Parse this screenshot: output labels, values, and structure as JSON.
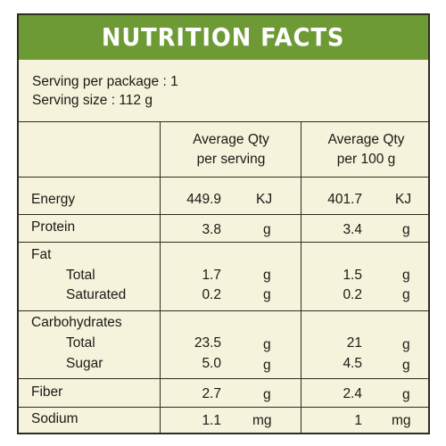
{
  "title": "NUTRITION FACTS",
  "serving": {
    "per_package": "Serving per package : 1",
    "size": "Serving size : 112 g"
  },
  "columns": {
    "per_serving_line1": "Average Qty",
    "per_serving_line2": "per serving",
    "per_100g_line1": "Average Qty",
    "per_100g_line2": "per 100 g"
  },
  "rows": {
    "energy": {
      "label": "Energy",
      "serving": "449.9",
      "serving_unit": "KJ",
      "per100": "401.7",
      "per100_unit": "KJ"
    },
    "protein": {
      "label": "Protein",
      "serving": "3.8",
      "serving_unit": "g",
      "per100": "3.4",
      "per100_unit": "g"
    },
    "fat": {
      "label": "Fat",
      "total": {
        "label": "Total",
        "serving": "1.7",
        "serving_unit": "g",
        "per100": "1.5",
        "per100_unit": "g"
      },
      "saturated": {
        "label": "Saturated",
        "serving": "0.2",
        "serving_unit": "g",
        "per100": "0.2",
        "per100_unit": "g"
      }
    },
    "carbohydrates": {
      "label": "Carbohydrates",
      "total": {
        "label": "Total",
        "serving": "23.5",
        "serving_unit": "g",
        "per100": "21",
        "per100_unit": "g"
      },
      "sugar": {
        "label": "Sugar",
        "serving": "5.0",
        "serving_unit": "g",
        "per100": "4.5",
        "per100_unit": "g"
      }
    },
    "fiber": {
      "label": "Fiber",
      "serving": "2.7",
      "serving_unit": "g",
      "per100": "2.4",
      "per100_unit": "g"
    },
    "sodium": {
      "label": "Sodium",
      "serving": "1.1",
      "serving_unit": "mg",
      "per100": "1",
      "per100_unit": "mg"
    }
  },
  "colors": {
    "header_bg": "#6e9a36",
    "panel_bg": "#f5f3dc",
    "border": "#2d2d20"
  }
}
